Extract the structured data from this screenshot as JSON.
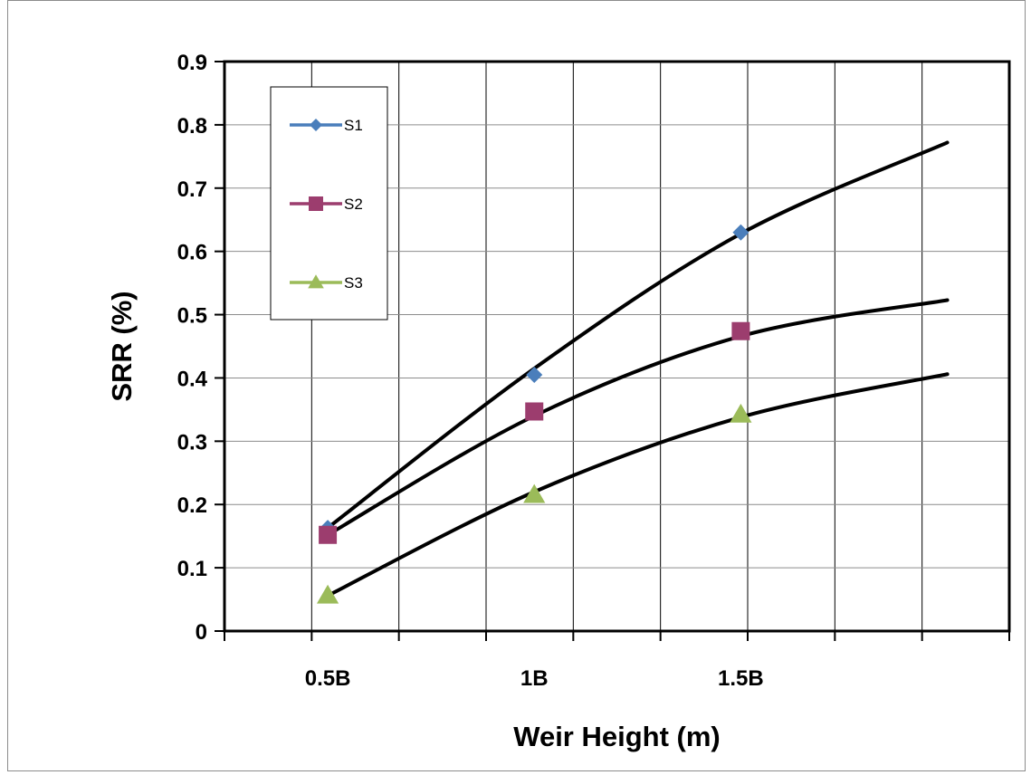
{
  "chart_data": {
    "type": "scatter",
    "title": "",
    "xlabel": "Weir Height (m)",
    "ylabel": "SRR (%)",
    "x_tick_labels": [
      {
        "x": 0.5,
        "label": "0.5B"
      },
      {
        "x": 1.0,
        "label": "1B"
      },
      {
        "x": 1.5,
        "label": "1.5B"
      }
    ],
    "xlim": [
      0.25,
      2.15
    ],
    "ylim": [
      0,
      0.9
    ],
    "y_ticks": [
      "0",
      "0.1",
      "0.2",
      "0.3",
      "0.4",
      "0.5",
      "0.6",
      "0.7",
      "0.8",
      "0.9"
    ],
    "grid": true,
    "legend_position": "top-left",
    "series": [
      {
        "name": "S1",
        "marker": "diamond",
        "color": "#4a7ebb",
        "x": [
          0.5,
          1.0,
          1.5
        ],
        "y": [
          0.163,
          0.405,
          0.63
        ],
        "trend": {
          "x": [
            0.5,
            1.0,
            1.5,
            2.0
          ],
          "y": [
            0.163,
            0.415,
            0.628,
            0.772
          ]
        }
      },
      {
        "name": "S2",
        "marker": "square",
        "color": "#9c3d6e",
        "x": [
          0.5,
          1.0,
          1.5
        ],
        "y": [
          0.152,
          0.347,
          0.474
        ],
        "trend": {
          "x": [
            0.5,
            1.0,
            1.5,
            2.0
          ],
          "y": [
            0.152,
            0.34,
            0.466,
            0.523
          ]
        }
      },
      {
        "name": "S3",
        "marker": "triangle",
        "color": "#9bbb59",
        "x": [
          0.5,
          1.0,
          1.5
        ],
        "y": [
          0.056,
          0.215,
          0.342
        ],
        "trend": {
          "x": [
            0.5,
            1.0,
            1.5,
            2.0
          ],
          "y": [
            0.056,
            0.22,
            0.338,
            0.406
          ]
        }
      }
    ],
    "trendline_color": "#000000"
  }
}
